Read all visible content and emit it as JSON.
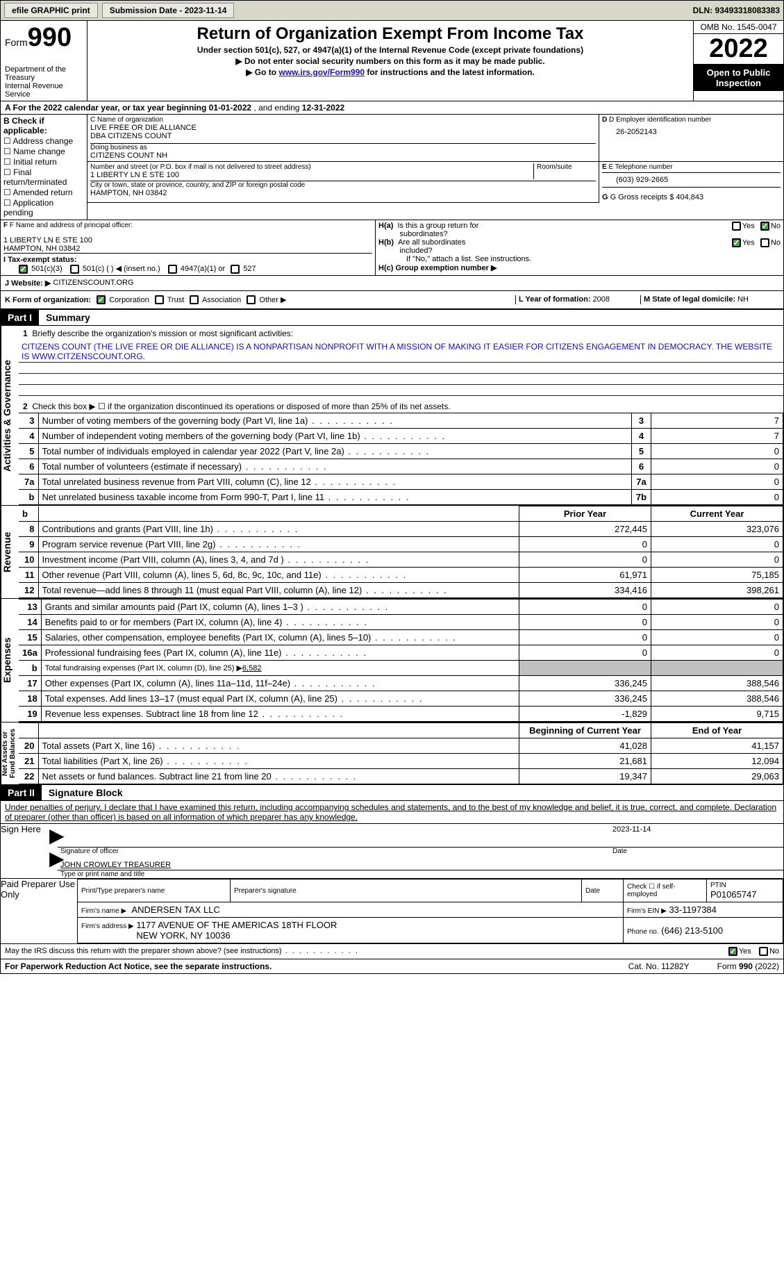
{
  "topbar": {
    "efile_label": "efile GRAPHIC print",
    "submission_text": "Submission Date - 2023-11-14",
    "dln_text": "DLN: 93493318083383"
  },
  "header": {
    "form_label_sm": "Form",
    "form_label_big": "990",
    "dept": "Department of the Treasury\nInternal Revenue Service",
    "title": "Return of Organization Exempt From Income Tax",
    "sub1": "Under section 501(c), 527, or 4947(a)(1) of the Internal Revenue Code (except private foundations)",
    "sub2": "▶ Do not enter social security numbers on this form as it may be made public.",
    "sub3_pre": "▶ Go to ",
    "sub3_link": "www.irs.gov/Form990",
    "sub3_post": " for instructions and the latest information.",
    "omb": "OMB No. 1545-0047",
    "year": "2022",
    "open": "Open to Public Inspection"
  },
  "line_a": {
    "text_pre": "A For the 2022 calendar year, or tax year beginning ",
    "begin": "01-01-2022",
    "mid": "   , and ending ",
    "end": "12-31-2022"
  },
  "box_b": {
    "label": "B Check if applicable:",
    "items": [
      "Address change",
      "Name change",
      "Initial return",
      "Final return/terminated",
      "Amended return",
      "Application pending"
    ]
  },
  "box_c": {
    "lbl": "C Name of organization",
    "line1": "LIVE FREE OR DIE ALLIANCE",
    "line2": "DBA CITIZENS COUNT",
    "dba_lbl": "Doing business as",
    "dba": "CITIZENS COUNT NH",
    "addr_lbl": "Number and street (or P.O. box if mail is not delivered to street address)",
    "room_lbl": "Room/suite",
    "addr": "1 LIBERTY LN E STE 100",
    "city_lbl": "City or town, state or province, country, and ZIP or foreign postal code",
    "city": "HAMPTON, NH  03842"
  },
  "box_d": {
    "lbl": "D Employer identification number",
    "val": "26-2052143"
  },
  "box_e": {
    "lbl": "E Telephone number",
    "val": "(603) 929-2665"
  },
  "box_g": {
    "lbl": "G Gross receipts $",
    "val": "404,843"
  },
  "box_f": {
    "lbl": "F Name and address of principal officer:",
    "line1": "1 LIBERTY LN E STE 100",
    "line2": "HAMPTON, NH  03842"
  },
  "box_h": {
    "a_q": "H(a)  Is this a group return for subordinates?",
    "b_q": "H(b)  Are all subordinates included?",
    "b_note": "If \"No,\" attach a list. See instructions.",
    "c_q": "H(c)  Group exemption number ▶",
    "yes": "Yes",
    "no": "No"
  },
  "line_i": {
    "lbl": "I   Tax-exempt status:",
    "opt1": "501(c)(3)",
    "opt2": "501(c) (  ) ◀ (insert no.)",
    "opt3": "4947(a)(1) or",
    "opt4": "527"
  },
  "line_j": {
    "lbl": "J   Website: ▶",
    "val": " CITIZENSCOUNT.ORG"
  },
  "line_k": {
    "lbl": "K Form of organization:",
    "opts": [
      "Corporation",
      "Trust",
      "Association",
      "Other ▶"
    ]
  },
  "line_l": {
    "lbl": "L Year of formation: ",
    "val": "2008"
  },
  "line_m": {
    "lbl": "M State of legal domicile: ",
    "val": "NH"
  },
  "part1": {
    "tag": "Part I",
    "title": "Summary",
    "line1_lbl": "Briefly describe the organization's mission or most significant activities:",
    "mission": "CITIZENS COUNT (THE LIVE FREE OR DIE ALLIANCE) IS A NONPARTISAN NONPROFIT WITH A MISSION OF MAKING IT EASIER FOR CITIZENS ENGAGEMENT IN DEMOCRACY. THE WEBSITE IS WWW.CITZENSCOUNT.ORG.",
    "line2": "Check this box ▶ ☐ if the organization discontinued its operations or disposed of more than 25% of its net assets.",
    "rows_ag": [
      {
        "n": "3",
        "t": "Number of voting members of the governing body (Part VI, line 1a)",
        "box": "3",
        "v": "7"
      },
      {
        "n": "4",
        "t": "Number of independent voting members of the governing body (Part VI, line 1b)",
        "box": "4",
        "v": "7"
      },
      {
        "n": "5",
        "t": "Total number of individuals employed in calendar year 2022 (Part V, line 2a)",
        "box": "5",
        "v": "0"
      },
      {
        "n": "6",
        "t": "Total number of volunteers (estimate if necessary)",
        "box": "6",
        "v": "0"
      },
      {
        "n": "7a",
        "t": "Total unrelated business revenue from Part VIII, column (C), line 12",
        "box": "7a",
        "v": "0"
      },
      {
        "n": "b",
        "t": "Net unrelated business taxable income from Form 990-T, Part I, line 11",
        "box": "7b",
        "v": "0"
      }
    ],
    "col_prior": "Prior Year",
    "col_current": "Current Year",
    "rows_rev": [
      {
        "n": "8",
        "t": "Contributions and grants (Part VIII, line 1h)",
        "py": "272,445",
        "cy": "323,076"
      },
      {
        "n": "9",
        "t": "Program service revenue (Part VIII, line 2g)",
        "py": "0",
        "cy": "0"
      },
      {
        "n": "10",
        "t": "Investment income (Part VIII, column (A), lines 3, 4, and 7d )",
        "py": "0",
        "cy": "0"
      },
      {
        "n": "11",
        "t": "Other revenue (Part VIII, column (A), lines 5, 6d, 8c, 9c, 10c, and 11e)",
        "py": "61,971",
        "cy": "75,185"
      },
      {
        "n": "12",
        "t": "Total revenue—add lines 8 through 11 (must equal Part VIII, column (A), line 12)",
        "py": "334,416",
        "cy": "398,261"
      }
    ],
    "rows_exp": [
      {
        "n": "13",
        "t": "Grants and similar amounts paid (Part IX, column (A), lines 1–3 )",
        "py": "0",
        "cy": "0"
      },
      {
        "n": "14",
        "t": "Benefits paid to or for members (Part IX, column (A), line 4)",
        "py": "0",
        "cy": "0"
      },
      {
        "n": "15",
        "t": "Salaries, other compensation, employee benefits (Part IX, column (A), lines 5–10)",
        "py": "0",
        "cy": "0"
      },
      {
        "n": "16a",
        "t": "Professional fundraising fees (Part IX, column (A), line 11e)",
        "py": "0",
        "cy": "0"
      }
    ],
    "row_16b_pre": "Total fundraising expenses (Part IX, column (D), line 25) ▶",
    "row_16b_val": "6,582",
    "rows_exp2": [
      {
        "n": "17",
        "t": "Other expenses (Part IX, column (A), lines 11a–11d, 11f–24e)",
        "py": "336,245",
        "cy": "388,546"
      },
      {
        "n": "18",
        "t": "Total expenses. Add lines 13–17 (must equal Part IX, column (A), line 25)",
        "py": "336,245",
        "cy": "388,546"
      },
      {
        "n": "19",
        "t": "Revenue less expenses. Subtract line 18 from line 12",
        "py": "-1,829",
        "cy": "9,715"
      }
    ],
    "col_boy": "Beginning of Current Year",
    "col_eoy": "End of Year",
    "rows_na": [
      {
        "n": "20",
        "t": "Total assets (Part X, line 16)",
        "py": "41,028",
        "cy": "41,157"
      },
      {
        "n": "21",
        "t": "Total liabilities (Part X, line 26)",
        "py": "21,681",
        "cy": "12,094"
      },
      {
        "n": "22",
        "t": "Net assets or fund balances. Subtract line 21 from line 20",
        "py": "19,347",
        "cy": "29,063"
      }
    ],
    "vlabel_ag": "Activities & Governance",
    "vlabel_rev": "Revenue",
    "vlabel_exp": "Expenses",
    "vlabel_na": "Net Assets or\nFund Balances"
  },
  "part2": {
    "tag": "Part II",
    "title": "Signature Block",
    "decl": "Under penalties of perjury, I declare that I have examined this return, including accompanying schedules and statements, and to the best of my knowledge and belief, it is true, correct, and complete. Declaration of preparer (other than officer) is based on all information of which preparer has any knowledge.",
    "sign_here": "Sign Here",
    "sig_officer_lbl": "Signature of officer",
    "sig_date": "2023-11-14",
    "date_lbl": "Date",
    "printed_name": "JOHN CROWLEY TREASURER",
    "printed_lbl": "Type or print name and title",
    "paid": "Paid Preparer Use Only",
    "prep_name_lbl": "Print/Type preparer's name",
    "prep_sig_lbl": "Preparer's signature",
    "self_emp": "Check ☐ if self-employed",
    "ptin_lbl": "PTIN",
    "ptin": "P01065747",
    "firm_name_lbl": "Firm's name    ▶",
    "firm_name": "ANDERSEN TAX LLC",
    "firm_ein_lbl": "Firm's EIN ▶",
    "firm_ein": "33-1197384",
    "firm_addr_lbl": "Firm's address ▶",
    "firm_addr": "1177 AVENUE OF THE AMERICAS 18TH FLOOR\nNEW YORK, NY  10036",
    "phone_lbl": "Phone no.",
    "phone": "(646) 213-5100",
    "may_irs": "May the IRS discuss this return with the preparer shown above? (see instructions)",
    "yes": "Yes",
    "no": "No"
  },
  "footer": {
    "pra": "For Paperwork Reduction Act Notice, see the separate instructions.",
    "cat": "Cat. No. 11282Y",
    "formno": "Form 990 (2022)"
  }
}
